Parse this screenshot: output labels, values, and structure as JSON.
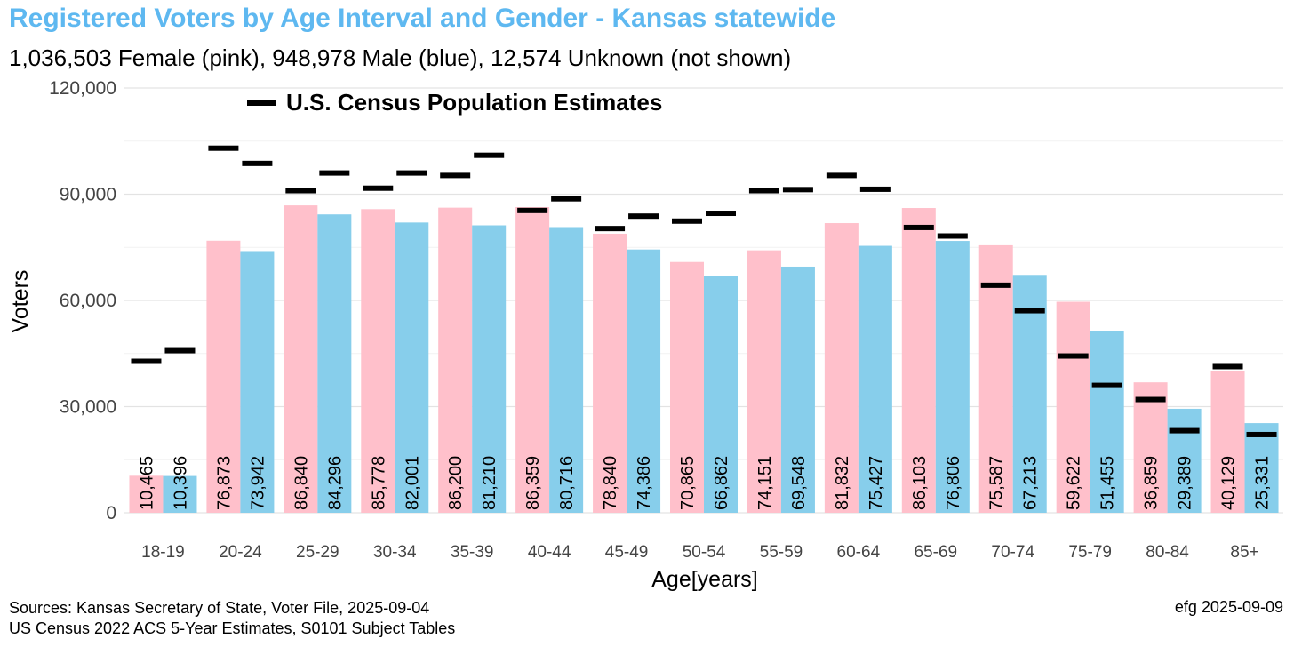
{
  "title": "Registered Voters by Age Interval and Gender - Kansas statewide",
  "subtitle": "1,036,503 Female (pink),  948,978 Male (blue),  12,574 Unknown (not shown)",
  "sources": {
    "line1": "Sources: Kansas Secretary of State, Voter File, 2025-09-04",
    "line2": "US Census 2022 ACS 5-Year Estimates, S0101 Subject Tables"
  },
  "credit": "efg 2025-09-09",
  "colors": {
    "female": "#ffc0cb",
    "male": "#87ceeb",
    "census": "#000000",
    "title": "#5eb8f0"
  },
  "chart_data": {
    "type": "bar",
    "xlabel": "Age[years]",
    "ylabel": "Voters",
    "ylim": [
      0,
      120000
    ],
    "yticks": [
      0,
      30000,
      60000,
      90000,
      120000
    ],
    "ytick_labels": [
      "0",
      "30,000",
      "60,000",
      "90,000",
      "120,000"
    ],
    "grid": true,
    "legend": {
      "label": "U.S. Census Population Estimates",
      "placement": "top-left"
    },
    "categories": [
      "18-19",
      "20-24",
      "25-29",
      "30-34",
      "35-39",
      "40-44",
      "45-49",
      "50-54",
      "55-59",
      "60-64",
      "65-69",
      "70-74",
      "75-79",
      "80-84",
      "85+"
    ],
    "series": [
      {
        "key": "female",
        "values": [
          10465,
          76873,
          86840,
          85778,
          86200,
          86359,
          78840,
          70865,
          74151,
          81832,
          86103,
          75587,
          59622,
          36859,
          40129
        ],
        "labels": [
          "10,465",
          "76,873",
          "86,840",
          "85,778",
          "86,200",
          "86,359",
          "78,840",
          "70,865",
          "74,151",
          "81,832",
          "86,103",
          "75,587",
          "59,622",
          "36,859",
          "40,129"
        ]
      },
      {
        "key": "male",
        "values": [
          10396,
          73942,
          84296,
          82001,
          81210,
          80716,
          74386,
          66862,
          69548,
          75427,
          76806,
          67213,
          51455,
          29389,
          25331
        ],
        "labels": [
          "10,396",
          "73,942",
          "84,296",
          "82,001",
          "81,210",
          "80,716",
          "74,386",
          "66,862",
          "69,548",
          "75,427",
          "76,806",
          "67,213",
          "51,455",
          "29,389",
          "25,331"
        ]
      }
    ],
    "census_estimates": {
      "female": [
        42800,
        103000,
        91000,
        91700,
        95300,
        85400,
        80300,
        82400,
        91000,
        95300,
        80600,
        64300,
        44300,
        32000,
        41300
      ],
      "male": [
        45800,
        98700,
        96000,
        96000,
        101000,
        88700,
        83800,
        84600,
        91300,
        91400,
        78200,
        57100,
        36000,
        23200,
        22100
      ]
    }
  }
}
